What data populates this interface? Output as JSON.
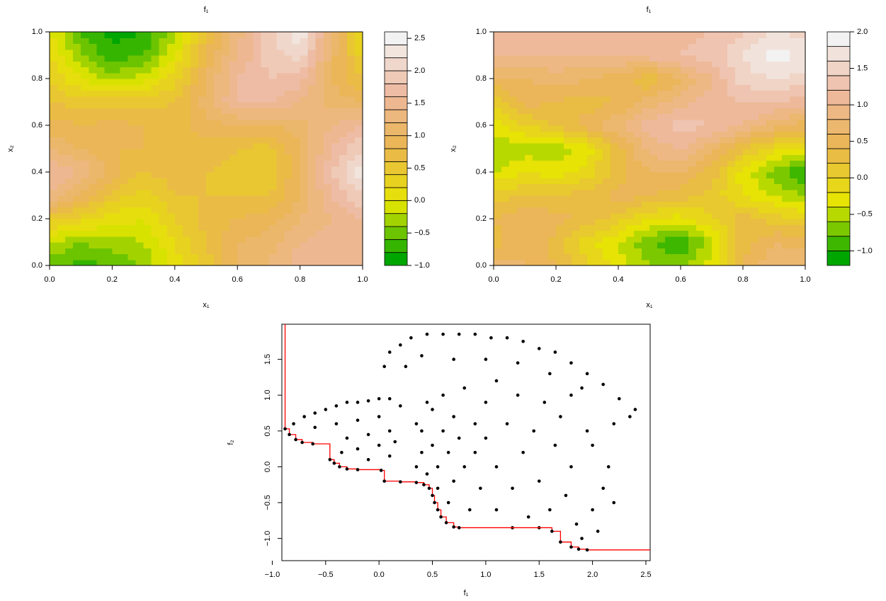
{
  "chart_data": [
    {
      "type": "contour",
      "title": "f₁",
      "xlabel": "x₁",
      "ylabel": "x₂",
      "xlim": [
        0,
        1
      ],
      "ylim": [
        0,
        1
      ],
      "xticks": [
        {
          "value": 0,
          "label": "0.0"
        },
        {
          "value": 0.2,
          "label": "0.2"
        },
        {
          "value": 0.4,
          "label": "0.4"
        },
        {
          "value": 0.6,
          "label": "0.6"
        },
        {
          "value": 0.8,
          "label": "0.8"
        },
        {
          "value": 1,
          "label": "1.0"
        }
      ],
      "yticks": [
        {
          "value": 0,
          "label": "0.0"
        },
        {
          "value": 0.2,
          "label": "0.2"
        },
        {
          "value": 0.4,
          "label": "0.4"
        },
        {
          "value": 0.6,
          "label": "0.6"
        },
        {
          "value": 0.8,
          "label": "0.8"
        },
        {
          "value": 1,
          "label": "1.0"
        }
      ],
      "x_grid": [
        0,
        0.1,
        0.2,
        0.3,
        0.4,
        0.5,
        0.6,
        0.7,
        0.8,
        0.9,
        1
      ],
      "y_grid": [
        0,
        0.1,
        0.2,
        0.3,
        0.4,
        0.5,
        0.6,
        0.7,
        0.8,
        0.9,
        1
      ],
      "z": [
        [
          -0.5,
          -0.7,
          -0.6,
          -0.4,
          0.1,
          0.5,
          1.0,
          1.2,
          1.5,
          1.5,
          1.4
        ],
        [
          -0.2,
          -0.4,
          -0.3,
          -0.2,
          0.2,
          0.6,
          1.0,
          1.1,
          1.4,
          1.5,
          1.5
        ],
        [
          0.5,
          0.3,
          0.1,
          0.0,
          0.4,
          0.7,
          0.8,
          0.9,
          1.2,
          1.4,
          1.6
        ],
        [
          1.4,
          1.0,
          0.5,
          0.3,
          0.6,
          0.6,
          0.6,
          0.6,
          1.0,
          1.6,
          2.0
        ],
        [
          1.6,
          1.4,
          0.9,
          0.6,
          0.7,
          0.6,
          0.5,
          0.4,
          1.0,
          1.8,
          2.3
        ],
        [
          1.2,
          1.0,
          0.8,
          0.8,
          0.7,
          0.7,
          0.6,
          0.5,
          1.0,
          1.6,
          2.0
        ],
        [
          0.9,
          0.8,
          0.9,
          0.8,
          0.7,
          0.9,
          1.0,
          1.0,
          1.1,
          1.4,
          1.6
        ],
        [
          0.6,
          0.5,
          0.5,
          0.5,
          0.6,
          1.1,
          1.6,
          1.6,
          1.4,
          1.1,
          1.0
        ],
        [
          0.4,
          0.0,
          -0.3,
          -0.1,
          0.3,
          1.0,
          1.6,
          1.8,
          1.7,
          1.0,
          0.6
        ],
        [
          0.2,
          -0.4,
          -0.7,
          -0.6,
          0.0,
          0.8,
          1.4,
          1.9,
          2.1,
          1.1,
          0.3
        ],
        [
          0.0,
          -0.6,
          -0.9,
          -0.8,
          -0.3,
          0.6,
          1.3,
          1.9,
          2.4,
          1.2,
          0.2
        ]
      ],
      "levels": [
        -1.0,
        -0.8,
        -0.6,
        -0.4,
        -0.2,
        0.0,
        0.2,
        0.4,
        0.6,
        0.8,
        1.0,
        1.2,
        1.4,
        1.6,
        1.8,
        2.0,
        2.2,
        2.4,
        2.6
      ],
      "zticks": [
        {
          "value": -1,
          "label": "−1.0"
        },
        {
          "value": -0.5,
          "label": "−0.5"
        },
        {
          "value": 0,
          "label": "0.0"
        },
        {
          "value": 0.5,
          "label": "0.5"
        },
        {
          "value": 1,
          "label": "1.0"
        },
        {
          "value": 1.5,
          "label": "1.5"
        },
        {
          "value": 2,
          "label": "2.0"
        },
        {
          "value": 2.5,
          "label": "2.5"
        }
      ],
      "colormap": [
        "#00A600",
        "#E6E600",
        "#EAB64E",
        "#EEB99F",
        "#F2F2F2"
      ]
    },
    {
      "type": "contour",
      "title": "f₁",
      "xlabel": "x₁",
      "ylabel": "x₂",
      "xlim": [
        0,
        1
      ],
      "ylim": [
        0,
        1
      ],
      "xticks": [
        {
          "value": 0,
          "label": "0.0"
        },
        {
          "value": 0.2,
          "label": "0.2"
        },
        {
          "value": 0.4,
          "label": "0.4"
        },
        {
          "value": 0.6,
          "label": "0.6"
        },
        {
          "value": 0.8,
          "label": "0.8"
        },
        {
          "value": 1,
          "label": "1.0"
        }
      ],
      "yticks": [
        {
          "value": 0,
          "label": "0.0"
        },
        {
          "value": 0.2,
          "label": "0.2"
        },
        {
          "value": 0.4,
          "label": "0.4"
        },
        {
          "value": 0.6,
          "label": "0.6"
        },
        {
          "value": 0.8,
          "label": "0.8"
        },
        {
          "value": 1,
          "label": "1.0"
        }
      ],
      "x_grid": [
        0,
        0.1,
        0.2,
        0.3,
        0.4,
        0.5,
        0.6,
        0.7,
        0.8,
        0.9,
        1
      ],
      "y_grid": [
        0,
        0.1,
        0.2,
        0.3,
        0.4,
        0.5,
        0.6,
        0.7,
        0.8,
        0.9,
        1
      ],
      "z": [
        [
          0.7,
          0.6,
          0.4,
          0.0,
          -0.3,
          -0.6,
          -0.7,
          -0.3,
          0.4,
          0.8,
          0.8
        ],
        [
          0.3,
          0.6,
          0.3,
          -0.1,
          -0.4,
          -0.8,
          -1.0,
          -0.5,
          0.3,
          0.6,
          0.5
        ],
        [
          0.4,
          0.6,
          0.5,
          0.3,
          0.1,
          -0.2,
          -0.3,
          0.0,
          0.3,
          0.1,
          0.0
        ],
        [
          0.1,
          0.2,
          0.2,
          0.3,
          0.5,
          0.4,
          0.3,
          0.1,
          -0.2,
          -0.4,
          -0.6
        ],
        [
          -0.4,
          -0.2,
          -0.3,
          -0.1,
          0.3,
          0.6,
          0.6,
          0.3,
          -0.3,
          -0.7,
          -1.0
        ],
        [
          -0.6,
          -0.5,
          -0.6,
          -0.3,
          0.3,
          0.9,
          1.0,
          0.7,
          0.2,
          -0.1,
          -0.3
        ],
        [
          -0.3,
          0.0,
          0.2,
          0.5,
          0.8,
          1.1,
          1.3,
          1.2,
          1.0,
          0.7,
          0.5
        ],
        [
          0.0,
          0.5,
          0.4,
          0.3,
          0.4,
          0.7,
          0.9,
          1.1,
          1.2,
          1.2,
          1.1
        ],
        [
          0.6,
          0.6,
          0.7,
          0.6,
          0.5,
          0.2,
          0.6,
          1.0,
          1.5,
          1.6,
          1.5
        ],
        [
          1.0,
          1.0,
          1.0,
          1.0,
          1.0,
          1.1,
          1.2,
          1.3,
          1.6,
          1.9,
          1.8
        ],
        [
          1.1,
          1.1,
          1.2,
          1.2,
          1.1,
          1.2,
          1.1,
          1.2,
          1.4,
          1.6,
          1.5
        ]
      ],
      "levels": [
        -1.2,
        -1.0,
        -0.8,
        -0.6,
        -0.4,
        -0.2,
        0.0,
        0.2,
        0.4,
        0.6,
        0.8,
        1.0,
        1.2,
        1.4,
        1.6,
        1.8,
        2.0
      ],
      "zticks": [
        {
          "value": -1,
          "label": "−1.0"
        },
        {
          "value": -0.5,
          "label": "−0.5"
        },
        {
          "value": 0,
          "label": "0.0"
        },
        {
          "value": 0.5,
          "label": "0.5"
        },
        {
          "value": 1,
          "label": "1.0"
        },
        {
          "value": 1.5,
          "label": "1.5"
        },
        {
          "value": 2,
          "label": "2.0"
        }
      ],
      "colormap": [
        "#00A600",
        "#E6E600",
        "#EAB64E",
        "#EEB99F",
        "#F2F2F2"
      ]
    },
    {
      "type": "scatter",
      "xlabel": "f₁",
      "ylabel": "f₂",
      "xlim": [
        -0.91,
        2.54
      ],
      "ylim": [
        -1.31,
        1.99
      ],
      "xticks": [
        {
          "value": -1,
          "label": "−1.0"
        },
        {
          "value": -0.5,
          "label": "−0.5"
        },
        {
          "value": 0,
          "label": "0.0"
        },
        {
          "value": 0.5,
          "label": "0.5"
        },
        {
          "value": 1,
          "label": "1.0"
        },
        {
          "value": 1.5,
          "label": "1.5"
        },
        {
          "value": 2,
          "label": "2.0"
        },
        {
          "value": 2.5,
          "label": "2.5"
        }
      ],
      "yticks": [
        {
          "value": -1,
          "label": "−1.0"
        },
        {
          "value": -0.5,
          "label": "−0.5"
        },
        {
          "value": 0,
          "label": "0.0"
        },
        {
          "value": 0.5,
          "label": "0.5"
        },
        {
          "value": 1,
          "label": "1.0"
        },
        {
          "value": 1.5,
          "label": "1.5"
        }
      ],
      "color": "#000000",
      "x": [
        0.05,
        0.1,
        0.2,
        0.3,
        0.45,
        0.6,
        0.75,
        0.9,
        1.05,
        1.2,
        1.35,
        1.5,
        1.65,
        1.8,
        1.95,
        2.1,
        2.25,
        2.4,
        2.35,
        2.2,
        0.4,
        0.7,
        1.0,
        1.3,
        1.6,
        1.9,
        0.25,
        -0.8,
        -0.7,
        -0.6,
        -0.5,
        -0.4,
        -0.3,
        -0.2,
        -0.1,
        0.0,
        0.1,
        0.2,
        -0.6,
        -0.4,
        -0.2,
        0.0,
        -0.3,
        -0.1,
        0.1,
        -0.35,
        -0.2,
        0.0,
        0.15,
        -0.1,
        0.1,
        0.35,
        0.4,
        0.4,
        0.45,
        0.5,
        0.5,
        0.55,
        0.55,
        0.6,
        0.6,
        0.65,
        0.65,
        0.7,
        0.7,
        0.75,
        0.8,
        0.8,
        0.85,
        0.9,
        0.9,
        0.95,
        1.0,
        1.0,
        0.45,
        0.35,
        1.1,
        1.1,
        1.1,
        1.2,
        1.25,
        1.3,
        1.35,
        1.4,
        1.45,
        1.5,
        1.55,
        1.6,
        1.65,
        1.7,
        1.75,
        1.8,
        1.85,
        1.9,
        1.95,
        2.0,
        2.05,
        2.1,
        2.15,
        2.2,
        1.8,
        2.0,
        1.25,
        1.5
      ],
      "y": [
        1.4,
        1.6,
        1.7,
        1.8,
        1.85,
        1.85,
        1.85,
        1.85,
        1.8,
        1.8,
        1.75,
        1.65,
        1.6,
        1.45,
        1.3,
        1.15,
        0.95,
        0.8,
        0.7,
        0.6,
        1.55,
        1.5,
        1.5,
        1.45,
        1.3,
        1.1,
        1.4,
        0.6,
        0.7,
        0.75,
        0.8,
        0.85,
        0.9,
        0.9,
        0.92,
        0.95,
        0.95,
        0.85,
        0.55,
        0.6,
        0.65,
        0.7,
        0.4,
        0.45,
        0.5,
        0.2,
        0.25,
        0.3,
        0.35,
        0.1,
        0.15,
        0.0,
        0.2,
        0.5,
        -0.1,
        0.3,
        0.8,
        0.0,
        -0.3,
        0.5,
        1.0,
        0.2,
        -0.5,
        0.7,
        -0.2,
        0.4,
        1.1,
        0.0,
        -0.6,
        0.6,
        0.2,
        -0.3,
        0.9,
        0.4,
        0.9,
        0.6,
        1.2,
        0.0,
        -0.6,
        0.6,
        -0.3,
        1.0,
        0.2,
        -0.7,
        0.5,
        -0.2,
        0.9,
        -0.6,
        0.3,
        0.7,
        -0.4,
        0.0,
        -0.8,
        -1.0,
        0.5,
        -0.6,
        -0.9,
        -0.3,
        0.0,
        -0.5,
        1.0,
        0.3,
        -0.85,
        -0.85
      ],
      "front": {
        "color": "#FF0000",
        "x": [
          -0.88,
          -0.84,
          -0.78,
          -0.72,
          -0.62,
          -0.46,
          -0.42,
          -0.37,
          -0.3,
          -0.2,
          0.02,
          0.05,
          0.2,
          0.35,
          0.42,
          0.47,
          0.5,
          0.52,
          0.55,
          0.58,
          0.63,
          0.7,
          0.75,
          1.62,
          1.7,
          1.8,
          1.87,
          1.95
        ],
        "y": [
          0.53,
          0.45,
          0.38,
          0.34,
          0.32,
          0.1,
          0.05,
          0.0,
          -0.03,
          -0.04,
          -0.05,
          -0.2,
          -0.21,
          -0.22,
          -0.25,
          -0.3,
          -0.4,
          -0.5,
          -0.6,
          -0.7,
          -0.78,
          -0.84,
          -0.85,
          -0.9,
          -1.05,
          -1.12,
          -1.15,
          -1.16
        ]
      }
    }
  ]
}
